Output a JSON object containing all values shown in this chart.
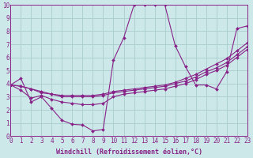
{
  "xlabel": "Windchill (Refroidissement éolien,°C)",
  "bg_color": "#cce8e8",
  "line_color": "#882288",
  "grid_color": "#aacccc",
  "xlim": [
    0,
    23
  ],
  "ylim": [
    0,
    10
  ],
  "xticks": [
    0,
    1,
    2,
    3,
    4,
    5,
    6,
    7,
    8,
    9,
    10,
    11,
    12,
    13,
    14,
    15,
    16,
    17,
    18,
    19,
    20,
    21,
    22,
    23
  ],
  "yticks": [
    0,
    1,
    2,
    3,
    4,
    5,
    6,
    7,
    8,
    9,
    10
  ],
  "series": [
    [
      3.9,
      4.4,
      2.6,
      3.0,
      2.1,
      1.2,
      0.9,
      0.85,
      0.4,
      0.5,
      5.8,
      7.5,
      10.0,
      10.0,
      10.0,
      10.0,
      6.9,
      5.3,
      3.9,
      3.9,
      3.6,
      4.9,
      8.2,
      8.4
    ],
    [
      3.9,
      3.8,
      3.6,
      3.3,
      3.2,
      3.1,
      3.1,
      3.1,
      3.1,
      3.2,
      3.4,
      3.5,
      3.6,
      3.7,
      3.8,
      3.9,
      4.1,
      4.4,
      4.7,
      5.1,
      5.5,
      5.9,
      6.5,
      7.1
    ],
    [
      3.9,
      3.8,
      3.6,
      3.4,
      3.2,
      3.0,
      3.0,
      3.0,
      3.0,
      3.1,
      3.3,
      3.4,
      3.5,
      3.6,
      3.7,
      3.8,
      4.0,
      4.2,
      4.5,
      4.9,
      5.2,
      5.6,
      6.2,
      6.8
    ],
    [
      3.9,
      3.5,
      2.9,
      3.1,
      2.8,
      2.6,
      2.5,
      2.4,
      2.4,
      2.5,
      3.0,
      3.2,
      3.3,
      3.4,
      3.5,
      3.6,
      3.8,
      4.0,
      4.3,
      4.7,
      5.0,
      5.4,
      6.0,
      6.6
    ]
  ],
  "tick_fontsize": 5.5,
  "xlabel_fontsize": 6.0,
  "linewidth": 0.8,
  "markersize": 2.0
}
